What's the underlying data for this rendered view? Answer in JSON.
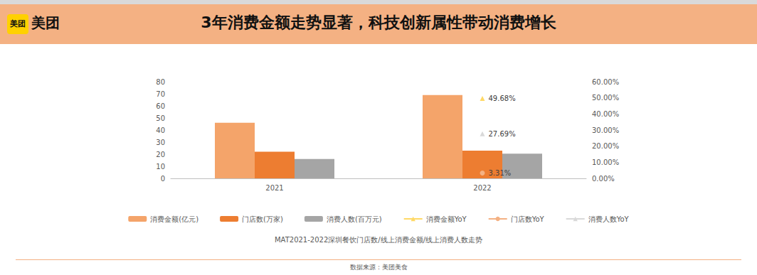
{
  "header": {
    "logo": "美团",
    "title": "3年消费金额走势显著，科技创新属性带动消费增长"
  },
  "footer": {
    "source": "数据来源：美团美食"
  },
  "chart_data": {
    "type": "bar",
    "title": "MAT2021-2022深圳餐饮门店数/线上消费金额/线上消费人数走势",
    "categories": [
      "2021",
      "2022"
    ],
    "series": [
      {
        "name": "消费金额(亿元)",
        "type": "bar",
        "color": "#f4a46a",
        "values": [
          46,
          69
        ]
      },
      {
        "name": "门店数(万家)",
        "type": "bar",
        "color": "#ed7d31",
        "values": [
          22,
          23
        ]
      },
      {
        "name": "消费人数(百万元)",
        "type": "bar",
        "color": "#a5a5a5",
        "values": [
          16,
          20.5
        ]
      },
      {
        "name": "消费金额YoY",
        "type": "line",
        "axis": "y2",
        "color": "#ffd966",
        "marker": "triangle",
        "data_labels": true,
        "values": [
          null,
          49.68
        ],
        "value_labels": [
          null,
          "49.68%"
        ]
      },
      {
        "name": "门店数YoY",
        "type": "line",
        "axis": "y2",
        "color": "#f4b183",
        "marker": "circle",
        "data_labels": true,
        "values": [
          null,
          3.31
        ],
        "value_labels": [
          null,
          "3.31%"
        ]
      },
      {
        "name": "消费人数YoY",
        "type": "line",
        "axis": "y2",
        "color": "#d9d9d9",
        "marker": "triangle",
        "data_labels": true,
        "values": [
          null,
          27.69
        ],
        "value_labels": [
          null,
          "27.69%"
        ]
      }
    ],
    "ylim": [
      0,
      80
    ],
    "yticks": [
      0,
      10,
      20,
      30,
      40,
      50,
      60,
      70,
      80
    ],
    "y2lim": [
      0,
      60
    ],
    "y2ticks": [
      {
        "value": 0,
        "label": "0.00%"
      },
      {
        "value": 10,
        "label": "10.00%"
      },
      {
        "value": 20,
        "label": "20.00%"
      },
      {
        "value": 30,
        "label": "30.00%"
      },
      {
        "value": 40,
        "label": "40.00%"
      },
      {
        "value": 50,
        "label": "50.00%"
      },
      {
        "value": 60,
        "label": "60.00%"
      }
    ],
    "grid": false,
    "legend": "bottom"
  }
}
